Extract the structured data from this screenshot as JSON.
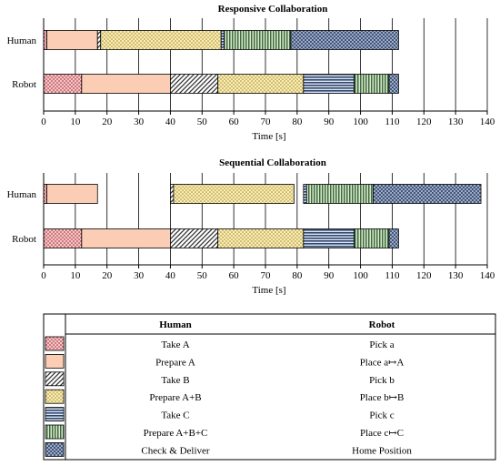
{
  "colors": {
    "take": "#d9888c",
    "prepare": "#fbcdb4",
    "prepare_ab": "#f3df8f",
    "take_c": "#2f4770",
    "prepare_abc": "#3f6b3c",
    "deliver": "#3a4f78"
  },
  "chart_data": [
    {
      "type": "gantt",
      "title": "Responsive Collaboration",
      "xlabel": "Time [s]",
      "xlim": [
        0,
        140
      ],
      "xticks": [
        "0",
        "10",
        "20",
        "30",
        "40",
        "50",
        "60",
        "70",
        "80",
        "90",
        "100",
        "110",
        "120",
        "130",
        "140"
      ],
      "grid": true,
      "rows": [
        {
          "label": "Human",
          "segments": [
            {
              "task": "take_a",
              "start": 0,
              "end": 1
            },
            {
              "task": "prepare_a",
              "start": 1,
              "end": 17
            },
            {
              "task": "take_b",
              "start": 17,
              "end": 18
            },
            {
              "task": "prepare_ab",
              "start": 18,
              "end": 56
            },
            {
              "task": "take_c",
              "start": 56,
              "end": 57
            },
            {
              "task": "prepare_abc",
              "start": 57,
              "end": 78
            },
            {
              "task": "check_deliver",
              "start": 78,
              "end": 112
            }
          ]
        },
        {
          "label": "Robot",
          "segments": [
            {
              "task": "take_a",
              "start": 0,
              "end": 12
            },
            {
              "task": "prepare_a",
              "start": 12,
              "end": 40
            },
            {
              "task": "take_b",
              "start": 40,
              "end": 55
            },
            {
              "task": "prepare_ab",
              "start": 55,
              "end": 82
            },
            {
              "task": "take_c",
              "start": 82,
              "end": 98
            },
            {
              "task": "prepare_abc",
              "start": 98,
              "end": 109
            },
            {
              "task": "check_deliver",
              "start": 109,
              "end": 112
            }
          ]
        }
      ]
    },
    {
      "type": "gantt",
      "title": "Sequential Collaboration",
      "xlabel": "Time [s]",
      "xlim": [
        0,
        140
      ],
      "xticks": [
        "0",
        "10",
        "20",
        "30",
        "40",
        "50",
        "60",
        "70",
        "80",
        "90",
        "100",
        "110",
        "120",
        "130",
        "140"
      ],
      "grid": true,
      "rows": [
        {
          "label": "Human",
          "segments": [
            {
              "task": "take_a",
              "start": 0,
              "end": 1
            },
            {
              "task": "prepare_a",
              "start": 1,
              "end": 17
            },
            {
              "task": "take_b",
              "start": 40,
              "end": 41
            },
            {
              "task": "prepare_ab",
              "start": 41,
              "end": 79
            },
            {
              "task": "take_c",
              "start": 82,
              "end": 83
            },
            {
              "task": "prepare_abc",
              "start": 83,
              "end": 104
            },
            {
              "task": "check_deliver",
              "start": 104,
              "end": 138
            }
          ]
        },
        {
          "label": "Robot",
          "segments": [
            {
              "task": "take_a",
              "start": 0,
              "end": 12
            },
            {
              "task": "prepare_a",
              "start": 12,
              "end": 40
            },
            {
              "task": "take_b",
              "start": 40,
              "end": 55
            },
            {
              "task": "prepare_ab",
              "start": 55,
              "end": 82
            },
            {
              "task": "take_c",
              "start": 82,
              "end": 98
            },
            {
              "task": "prepare_abc",
              "start": 98,
              "end": 109
            },
            {
              "task": "check_deliver",
              "start": 109,
              "end": 112
            }
          ]
        }
      ]
    },
    {
      "type": "table",
      "columns": [
        "Human",
        "Robot"
      ],
      "rows": [
        {
          "task": "take_a",
          "human": "Take A",
          "robot": "Pick a"
        },
        {
          "task": "prepare_a",
          "human": "Prepare A",
          "robot": "Place a↦A"
        },
        {
          "task": "take_b",
          "human": "Take B",
          "robot": "Pick b"
        },
        {
          "task": "prepare_ab",
          "human": "Prepare A+B",
          "robot": "Place b↦B"
        },
        {
          "task": "take_c",
          "human": "Take C",
          "robot": "Pick c"
        },
        {
          "task": "prepare_abc",
          "human": "Prepare A+B+C",
          "robot": "Place c↦C"
        },
        {
          "task": "check_deliver",
          "human": "Check & Deliver",
          "robot": "Home Position"
        }
      ]
    }
  ]
}
